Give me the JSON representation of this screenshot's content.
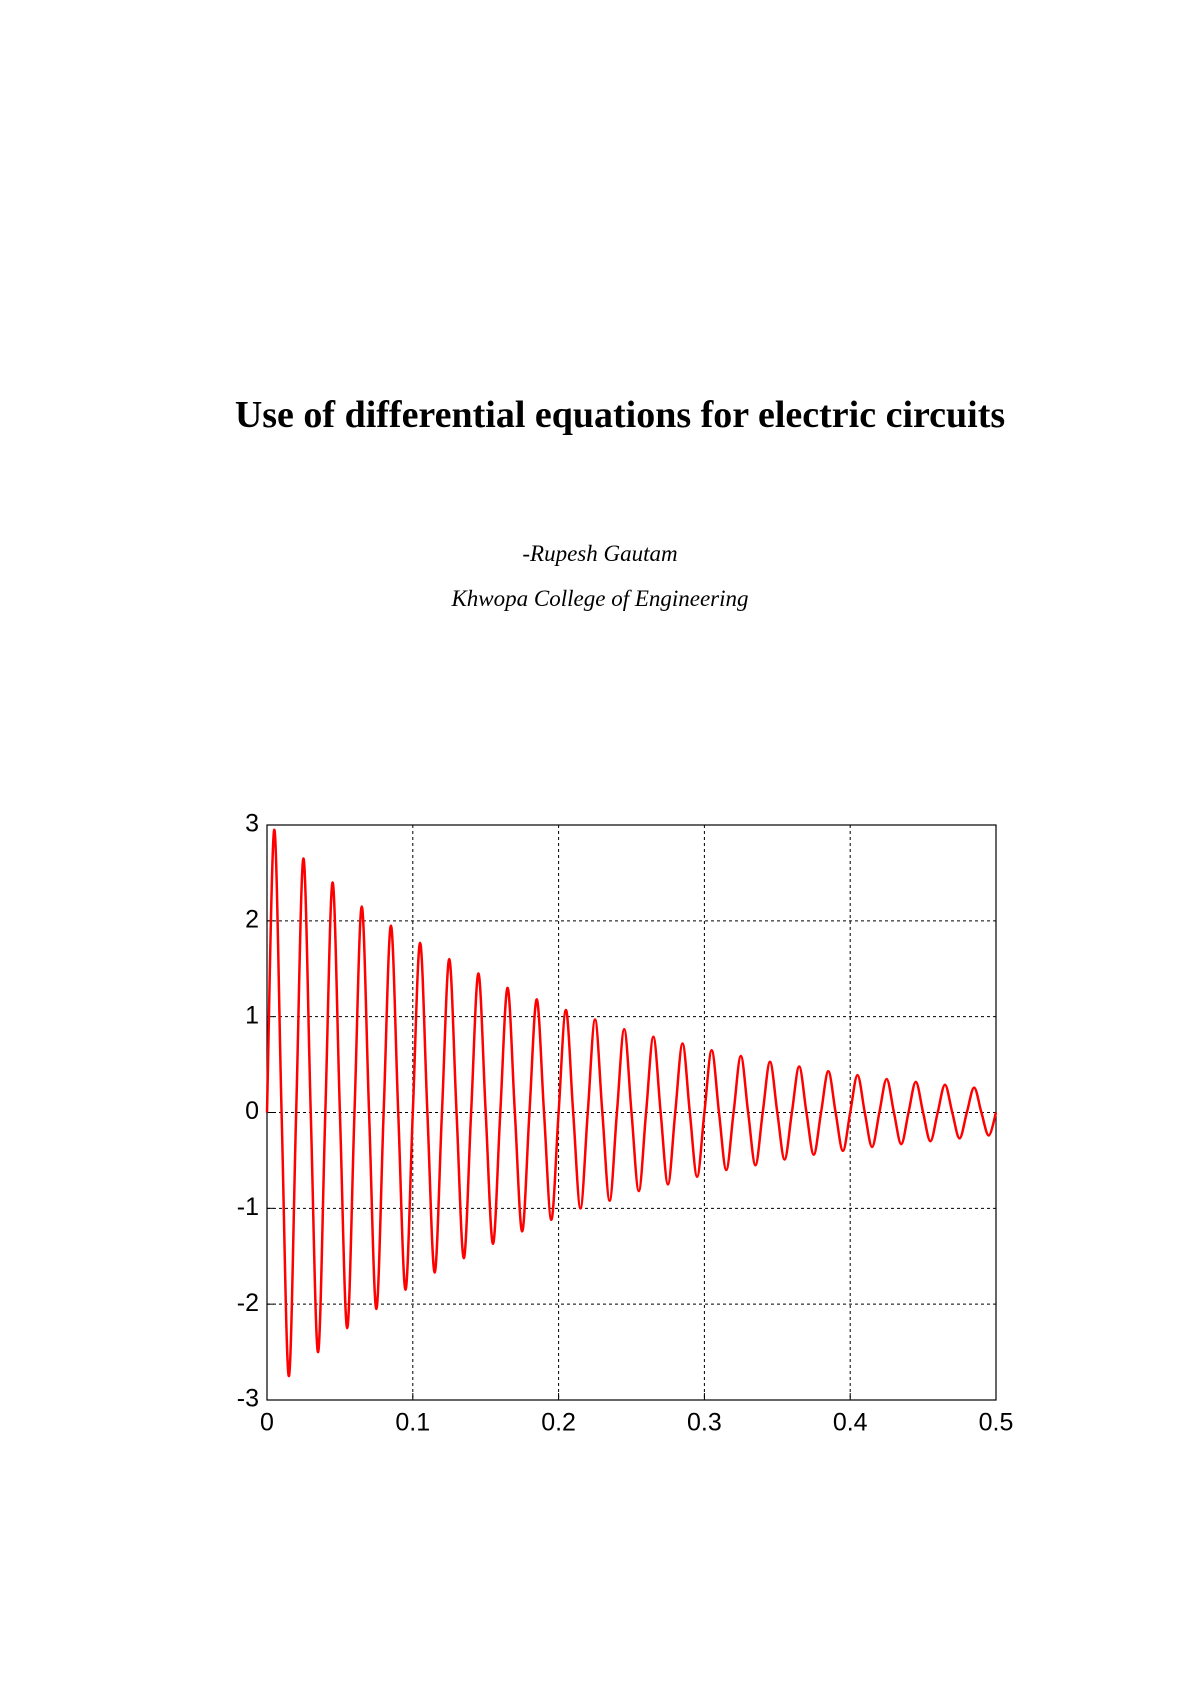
{
  "title": "Use of differential equations for electric circuits",
  "author": "-Rupesh Gautam",
  "affiliation": "Khwopa College of Engineering",
  "chart_data": {
    "type": "line",
    "color": "#ff0000",
    "grid": true,
    "xlim": [
      0,
      0.5
    ],
    "ylim": [
      -3,
      3
    ],
    "xticks": [
      0,
      0.1,
      0.2,
      0.3,
      0.4,
      0.5
    ],
    "yticks": [
      -3,
      -2,
      -1,
      0,
      1,
      2,
      3
    ],
    "x": [
      0,
      0.005,
      0.01,
      0.015,
      0.02,
      0.025,
      0.03,
      0.035,
      0.04,
      0.045,
      0.05,
      0.055,
      0.06,
      0.065,
      0.07,
      0.075,
      0.08,
      0.085,
      0.09,
      0.095,
      0.1,
      0.105,
      0.11,
      0.115,
      0.12,
      0.125,
      0.13,
      0.135,
      0.14,
      0.145,
      0.15,
      0.155,
      0.16,
      0.165,
      0.17,
      0.175,
      0.18,
      0.185,
      0.19,
      0.195,
      0.2,
      0.205,
      0.21,
      0.215,
      0.22,
      0.225,
      0.23,
      0.235,
      0.24,
      0.245,
      0.25,
      0.255,
      0.26,
      0.265,
      0.27,
      0.275,
      0.28,
      0.285,
      0.29,
      0.295,
      0.3,
      0.305,
      0.31,
      0.315,
      0.32,
      0.325,
      0.33,
      0.335,
      0.34,
      0.345,
      0.35,
      0.355,
      0.36,
      0.365,
      0.37,
      0.375,
      0.38,
      0.385,
      0.39,
      0.395,
      0.4,
      0.405,
      0.41,
      0.415,
      0.42,
      0.425,
      0.43,
      0.435,
      0.44,
      0.445,
      0.45,
      0.455,
      0.46,
      0.465,
      0.47,
      0.475,
      0.48,
      0.485,
      0.49,
      0.495,
      0.5
    ],
    "values": [
      0,
      2.95,
      0,
      -2.75,
      0,
      2.65,
      0,
      -2.5,
      0,
      2.4,
      0,
      -2.25,
      0,
      2.15,
      0,
      -2.05,
      0,
      1.95,
      0,
      -1.85,
      0,
      1.77,
      0,
      -1.67,
      0,
      1.6,
      0,
      -1.52,
      0,
      1.45,
      0,
      -1.37,
      0,
      1.3,
      0,
      -1.24,
      0,
      1.18,
      0,
      -1.12,
      0,
      1.07,
      0,
      -1.0,
      0,
      0.97,
      0,
      -0.92,
      0,
      0.87,
      0,
      -0.82,
      0,
      0.79,
      0,
      -0.75,
      0,
      0.72,
      0,
      -0.67,
      0,
      0.65,
      0,
      -0.6,
      0,
      0.59,
      0,
      -0.55,
      0,
      0.53,
      0,
      -0.49,
      0,
      0.48,
      0,
      -0.44,
      0,
      0.43,
      0,
      -0.4,
      0,
      0.39,
      0,
      -0.36,
      0,
      0.35,
      0,
      -0.33,
      0,
      0.32,
      0,
      -0.3,
      0,
      0.29,
      0,
      -0.27,
      0,
      0.26,
      0,
      -0.24,
      0
    ]
  }
}
